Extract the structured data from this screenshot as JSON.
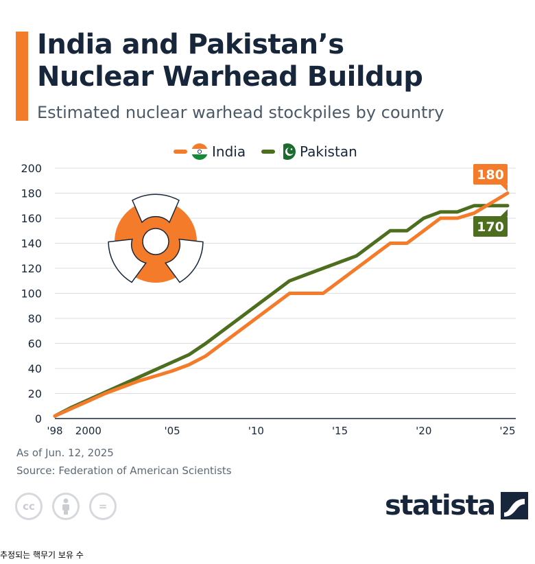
{
  "header": {
    "title_line1": "India and Pakistan’s",
    "title_line2": "Nuclear Warhead Buildup",
    "subtitle": "Estimated nuclear warhead stockpiles by country"
  },
  "colors": {
    "accent": "#f47b2a",
    "india": "#f47b2a",
    "pakistan": "#4e6e1f",
    "title": "#17263a",
    "grid": "#d9dde2"
  },
  "legend": [
    {
      "label": "India",
      "flag": "india-flag-icon"
    },
    {
      "label": "Pakistan",
      "flag": "pakistan-flag-icon"
    }
  ],
  "chart_data": {
    "type": "line",
    "title": "India and Pakistan’s Nuclear Warhead Buildup",
    "subtitle": "Estimated nuclear warhead stockpiles by country",
    "x": [
      1998,
      1999,
      2000,
      2001,
      2002,
      2003,
      2004,
      2005,
      2006,
      2007,
      2008,
      2009,
      2010,
      2011,
      2012,
      2013,
      2014,
      2015,
      2016,
      2017,
      2018,
      2019,
      2020,
      2021,
      2022,
      2023,
      2024,
      2025
    ],
    "x_tick_values": [
      1998,
      2000,
      2005,
      2010,
      2015,
      2020,
      2025
    ],
    "x_tick_labels": [
      "'98",
      "2000",
      "'05",
      "'10",
      "'15",
      "'20",
      "'25"
    ],
    "y_ticks": [
      0,
      20,
      40,
      60,
      80,
      100,
      120,
      140,
      160,
      180,
      200
    ],
    "xlim": [
      1998,
      2025
    ],
    "ylim": [
      0,
      200
    ],
    "grid": true,
    "legend_position": "top-center",
    "series": [
      {
        "name": "India",
        "values": [
          2,
          8,
          14,
          20,
          25,
          30,
          34,
          38,
          43,
          50,
          60,
          70,
          80,
          90,
          100,
          100,
          100,
          110,
          120,
          130,
          140,
          140,
          150,
          160,
          160,
          164,
          172,
          180
        ],
        "end_label": "180"
      },
      {
        "name": "Pakistan",
        "values": [
          2,
          9,
          15,
          21,
          27,
          33,
          39,
          45,
          51,
          60,
          70,
          80,
          90,
          100,
          110,
          115,
          120,
          125,
          130,
          140,
          150,
          150,
          160,
          165,
          165,
          170,
          170,
          170
        ],
        "end_label": "170"
      }
    ]
  },
  "footer": {
    "date_note": "As of Jun. 12, 2025",
    "source": "Source: Federation of American Scientists",
    "cc_labels": [
      "cc",
      "",
      "="
    ],
    "logo": "statista"
  },
  "caption": "추정되는 핵무기 보유 수"
}
